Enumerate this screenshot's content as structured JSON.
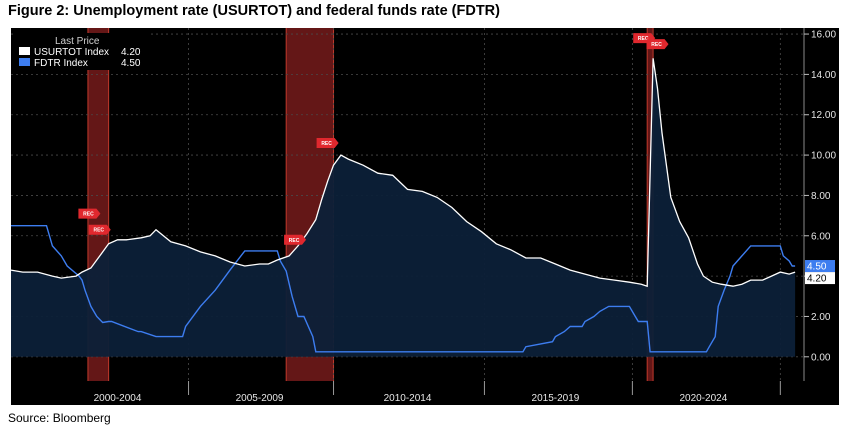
{
  "figure": {
    "title": "Figure 2: Unemployment rate (USURTOT) and federal funds rate (FDTR)",
    "source": "Source: Bloomberg"
  },
  "legend": {
    "header": "Last Price",
    "items": [
      {
        "name": "USURTOT Index",
        "value": "4.20",
        "color": "#ffffff"
      },
      {
        "name": "FDTR Index",
        "value": "4.50",
        "color": "#3d7df0"
      }
    ]
  },
  "badges": {
    "usurtot": {
      "text": "4.20",
      "color": "#ffffff"
    },
    "fdtr": {
      "text": "4.50",
      "color": "#3d7df0"
    }
  },
  "recession_label": "REC",
  "chart_data": {
    "type": "line",
    "xlim": [
      1998.6,
      2025.4
    ],
    "ylim": [
      -1.2,
      16.3
    ],
    "y_ticks": [
      0,
      2,
      4,
      6,
      8,
      10,
      12,
      14,
      16
    ],
    "y_tick_labels": [
      "0.00",
      "2.00",
      "4.00",
      "6.00",
      "8.00",
      "10.00",
      "12.00",
      "14.00",
      "16.00"
    ],
    "x_period_labels": [
      {
        "label": "2000-2004",
        "center": 2002.2
      },
      {
        "label": "2005-2009",
        "center": 2007.0
      },
      {
        "label": "2010-2014",
        "center": 2012.0
      },
      {
        "label": "2015-2019",
        "center": 2017.0
      },
      {
        "label": "2020-2024",
        "center": 2022.0
      }
    ],
    "x_period_dividers": [
      2004.6,
      2009.5,
      2014.6,
      2019.6,
      2024.6
    ],
    "recessions": [
      {
        "start": 2001.2,
        "end": 2001.9
      },
      {
        "start": 2007.9,
        "end": 2009.5
      },
      {
        "start": 2020.1,
        "end": 2020.3
      }
    ],
    "rec_markers": [
      {
        "x": 2001.25,
        "y": 7.1
      },
      {
        "x": 2001.6,
        "y": 6.3
      },
      {
        "x": 2008.2,
        "y": 5.8
      },
      {
        "x": 2009.3,
        "y": 10.6
      },
      {
        "x": 2020.0,
        "y": 15.8
      },
      {
        "x": 2020.45,
        "y": 15.5
      }
    ],
    "grid": true,
    "series": [
      {
        "name": "USURTOT Index",
        "color": "#ffffff",
        "fill": "#0c2038",
        "x": [
          1998.6,
          1999.0,
          1999.5,
          2000.0,
          2000.3,
          2000.8,
          2001.0,
          2001.3,
          2001.6,
          2001.9,
          2002.2,
          2002.5,
          2003.0,
          2003.3,
          2003.5,
          2004.0,
          2004.5,
          2005.0,
          2005.5,
          2006.0,
          2006.5,
          2007.0,
          2007.3,
          2007.6,
          2008.0,
          2008.3,
          2008.6,
          2008.9,
          2009.1,
          2009.3,
          2009.5,
          2009.75,
          2010.0,
          2010.5,
          2011.0,
          2011.5,
          2012.0,
          2012.5,
          2013.0,
          2013.5,
          2014.0,
          2014.5,
          2015.0,
          2015.5,
          2016.0,
          2016.5,
          2017.0,
          2017.5,
          2018.0,
          2018.5,
          2019.0,
          2019.5,
          2019.9,
          2020.1,
          2020.3,
          2020.45,
          2020.6,
          2020.9,
          2021.2,
          2021.5,
          2021.8,
          2022.0,
          2022.3,
          2022.6,
          2023.0,
          2023.3,
          2023.6,
          2024.0,
          2024.3,
          2024.6,
          2024.9,
          2025.1
        ],
        "y": [
          4.3,
          4.2,
          4.2,
          4.0,
          3.9,
          4.0,
          4.2,
          4.4,
          5.0,
          5.6,
          5.8,
          5.8,
          5.9,
          6.0,
          6.3,
          5.7,
          5.5,
          5.2,
          5.0,
          4.7,
          4.5,
          4.6,
          4.6,
          4.8,
          5.0,
          5.5,
          6.1,
          6.8,
          7.8,
          8.7,
          9.5,
          10.0,
          9.8,
          9.5,
          9.1,
          9.0,
          8.3,
          8.2,
          7.9,
          7.4,
          6.7,
          6.2,
          5.6,
          5.3,
          4.9,
          4.9,
          4.6,
          4.3,
          4.1,
          3.9,
          3.8,
          3.7,
          3.6,
          3.5,
          14.8,
          13.3,
          11.1,
          7.9,
          6.7,
          5.9,
          4.6,
          4.0,
          3.7,
          3.6,
          3.5,
          3.6,
          3.8,
          3.8,
          4.0,
          4.2,
          4.1,
          4.2
        ]
      },
      {
        "name": "FDTR Index",
        "color": "#3d7df0",
        "x": [
          1998.6,
          1999.0,
          1999.5,
          1999.8,
          2000.0,
          2000.3,
          2000.5,
          2000.9,
          2001.0,
          2001.1,
          2001.3,
          2001.5,
          2001.7,
          2001.9,
          2002.0,
          2002.9,
          2003.0,
          2003.5,
          2003.6,
          2004.4,
          2004.5,
          2005.0,
          2005.5,
          2006.0,
          2006.5,
          2007.6,
          2007.7,
          2007.9,
          2008.1,
          2008.3,
          2008.5,
          2008.8,
          2008.9,
          2009.0,
          2015.9,
          2016.0,
          2016.9,
          2017.0,
          2017.3,
          2017.5,
          2017.9,
          2018.0,
          2018.3,
          2018.5,
          2018.8,
          2019.0,
          2019.5,
          2019.7,
          2019.8,
          2020.1,
          2020.2,
          2022.1,
          2022.2,
          2022.4,
          2022.5,
          2022.7,
          2022.9,
          2023.0,
          2023.3,
          2023.6,
          2024.6,
          2024.7,
          2024.9,
          2025.0,
          2025.1
        ],
        "y": [
          6.5,
          6.5,
          6.5,
          6.5,
          5.5,
          5.0,
          4.5,
          4.0,
          3.8,
          3.3,
          2.5,
          2.0,
          1.7,
          1.75,
          1.75,
          1.25,
          1.25,
          1.0,
          1.0,
          1.0,
          1.5,
          2.5,
          3.3,
          4.3,
          5.25,
          5.25,
          4.75,
          4.25,
          3.0,
          2.0,
          2.0,
          1.0,
          0.25,
          0.25,
          0.25,
          0.5,
          0.75,
          1.0,
          1.25,
          1.5,
          1.5,
          1.75,
          2.0,
          2.25,
          2.5,
          2.5,
          2.5,
          2.0,
          1.75,
          1.75,
          0.25,
          0.25,
          0.5,
          1.0,
          2.5,
          3.3,
          4.0,
          4.5,
          5.0,
          5.5,
          5.5,
          5.0,
          4.75,
          4.5,
          4.5
        ]
      }
    ]
  }
}
